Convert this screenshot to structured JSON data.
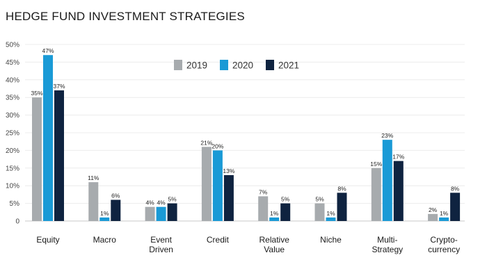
{
  "chart_data": {
    "type": "bar",
    "title": "HEDGE FUND INVESTMENT STRATEGIES",
    "categories": [
      [
        "Equity"
      ],
      [
        "Macro"
      ],
      [
        "Event",
        "Driven"
      ],
      [
        "Credit"
      ],
      [
        "Relative",
        "Value"
      ],
      [
        "Niche"
      ],
      [
        "Multi-",
        "Strategy"
      ],
      [
        "Crypto-",
        "currency"
      ]
    ],
    "series": [
      {
        "name": "2019",
        "color": "#a7abae",
        "values": [
          35,
          11,
          4,
          21,
          7,
          5,
          15,
          2
        ]
      },
      {
        "name": "2020",
        "color": "#1a9ad6",
        "values": [
          47,
          1,
          4,
          20,
          1,
          1,
          23,
          1
        ]
      },
      {
        "name": "2021",
        "color": "#0f2340",
        "values": [
          37,
          6,
          5,
          13,
          5,
          8,
          17,
          8
        ]
      }
    ],
    "value_suffix": "%",
    "y_ticks": [
      "0",
      "5%",
      "10%",
      "15%",
      "20%",
      "25%",
      "30%",
      "35%",
      "40%",
      "45%",
      "50%"
    ],
    "ylim": [
      0,
      50
    ],
    "grid": true,
    "legend_position": "top-center"
  }
}
